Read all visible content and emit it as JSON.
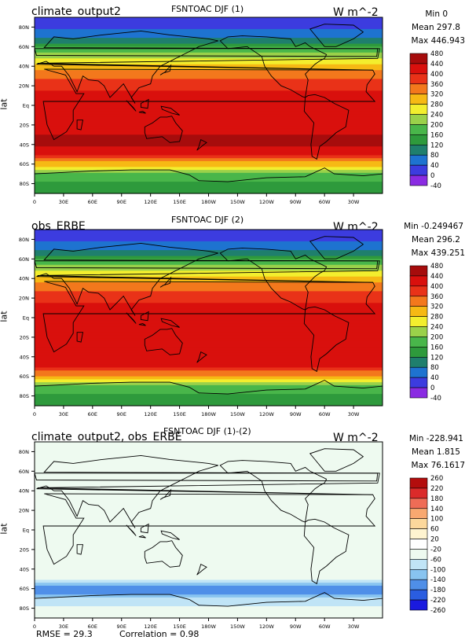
{
  "colors": {
    "ocean_abs": [
      "#8a2be2",
      "#3c3cdf",
      "#1e73d0",
      "#1f7f6d",
      "#2e9a3c",
      "#49b64a",
      "#9ad14a",
      "#f3ee2e",
      "#f6b914",
      "#f3781c",
      "#e93218",
      "#d9100d",
      "#a60c0c"
    ],
    "diff": [
      "#6a0fc8",
      "#1a1adf",
      "#2a5de0",
      "#4f8fe8",
      "#88c4f0",
      "#c0e4f6",
      "#eefaf0",
      "#ffffff",
      "#fff4d0",
      "#fcd89c",
      "#f8a870",
      "#ef6c56",
      "#db2a2a",
      "#b30d0d"
    ]
  },
  "chart_data": [
    {
      "type": "heatmap",
      "title": "FSNTOAC DJF (1)",
      "left_label": "climate_output2",
      "units": "W m^-2",
      "stats": {
        "min": "Min 0",
        "mean": "Mean 297.8",
        "max": "Max 446.943"
      },
      "ylabel": "lat",
      "x_ticks": [
        "0",
        "30E",
        "60E",
        "90E",
        "120E",
        "150E",
        "180W",
        "150W",
        "120W",
        "90W",
        "60W",
        "30W"
      ],
      "y_ticks": [
        "80N",
        "60N",
        "40N",
        "20N",
        "Eq",
        "20S",
        "40S",
        "60S",
        "80S"
      ],
      "colorbar_ticks": [
        "480",
        "440",
        "400",
        "360",
        "320",
        "280",
        "240",
        "200",
        "160",
        "120",
        "80",
        "40",
        "0",
        "-40"
      ],
      "lat_profile": {
        "lat": [
          90,
          80,
          70,
          60,
          50,
          40,
          30,
          20,
          10,
          0,
          -10,
          -20,
          -30,
          -40,
          -50,
          -60,
          -70,
          -80,
          -90
        ],
        "value": [
          0,
          20,
          80,
          150,
          220,
          290,
          350,
          390,
          410,
          410,
          420,
          430,
          440,
          446.9,
          400,
          300,
          200,
          150,
          120
        ]
      }
    },
    {
      "type": "heatmap",
      "title": "FSNTOAC DJF (2)",
      "left_label": "obs_ERBE",
      "units": "W m^-2",
      "stats": {
        "min": "Min -0.249467",
        "mean": "Mean 296.2",
        "max": "Max 439.251"
      },
      "ylabel": "lat",
      "x_ticks": [
        "0",
        "30E",
        "60E",
        "90E",
        "120E",
        "150E",
        "180W",
        "150W",
        "120W",
        "90W",
        "60W",
        "30W"
      ],
      "y_ticks": [
        "80N",
        "60N",
        "40N",
        "20N",
        "Eq",
        "20S",
        "40S",
        "60S",
        "80S"
      ],
      "colorbar_ticks": [
        "480",
        "440",
        "400",
        "360",
        "320",
        "280",
        "240",
        "200",
        "160",
        "120",
        "80",
        "40",
        "0",
        "-40"
      ],
      "lat_profile": {
        "lat": [
          90,
          80,
          70,
          60,
          50,
          40,
          30,
          20,
          10,
          0,
          -10,
          -20,
          -30,
          -40,
          -50,
          -60,
          -70,
          -80,
          -90
        ],
        "value": [
          0,
          20,
          80,
          150,
          220,
          290,
          350,
          390,
          410,
          405,
          410,
          420,
          430,
          439.3,
          400,
          320,
          180,
          150,
          120
        ]
      }
    },
    {
      "type": "heatmap",
      "title": "FSNTOAC DJF (1)-(2)",
      "left_label": "climate_output2, obs_ERBE",
      "units": "W m^-2",
      "stats": {
        "min": "Min -228.941",
        "mean": "Mean 1.815",
        "max": "Max 76.1617"
      },
      "ylabel": "lat",
      "x_ticks": [
        "0",
        "30E",
        "60E",
        "90E",
        "120E",
        "150E",
        "180W",
        "150W",
        "120W",
        "90W",
        "60W",
        "30W"
      ],
      "y_ticks": [
        "80N",
        "60N",
        "40N",
        "20N",
        "Eq",
        "20S",
        "40S",
        "60S",
        "80S"
      ],
      "colorbar_ticks": [
        "260",
        "220",
        "180",
        "140",
        "100",
        "60",
        "20",
        "-20",
        "-60",
        "-100",
        "-140",
        "-180",
        "-220",
        "-260"
      ],
      "footer": {
        "rmse": "RMSE = 29.3",
        "correlation": "Correlation = 0.98"
      },
      "lat_profile": {
        "lat": [
          90,
          80,
          70,
          60,
          50,
          40,
          30,
          20,
          10,
          0,
          -10,
          -20,
          -30,
          -40,
          -50,
          -60,
          -70,
          -80,
          -90
        ],
        "value": [
          0,
          0,
          0,
          0,
          0,
          0,
          0,
          0,
          0,
          0,
          0,
          0,
          0,
          0,
          0,
          -150,
          -60,
          0,
          0
        ]
      }
    }
  ]
}
